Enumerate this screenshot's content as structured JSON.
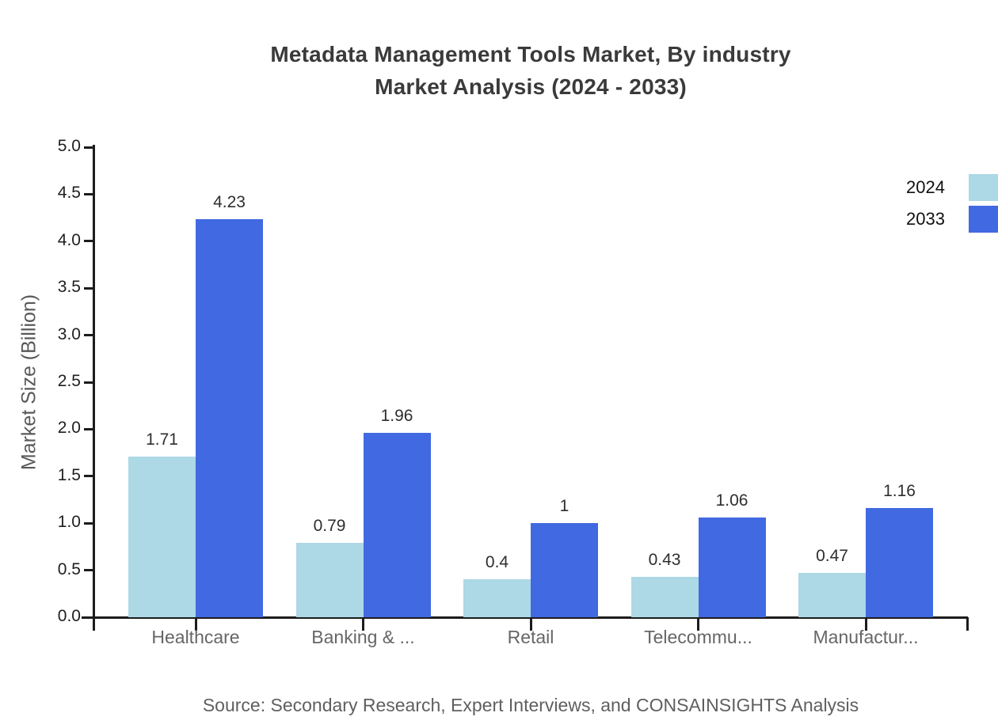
{
  "title": {
    "line1": "Metadata Management Tools Market, By industry",
    "line2": "Market Analysis (2024 - 2033)"
  },
  "source": {
    "text": "Source: Secondary Research, Expert Interviews, and CONSAINSIGHTS Analysis"
  },
  "chart_data": {
    "type": "bar",
    "title": "Metadata Management Tools Market, By industry Market Analysis (2024 - 2033)",
    "categories": [
      "Healthcare",
      "Banking & ...",
      "Retail",
      "Telecommu...",
      "Manufactur..."
    ],
    "series": [
      {
        "name": "2024",
        "color": "#ADD8E6",
        "values": [
          1.71,
          0.79,
          0.4,
          0.43,
          0.47
        ],
        "labels": [
          "1.71",
          "0.79",
          "0.4",
          "0.43",
          "0.47"
        ]
      },
      {
        "name": "2033",
        "color": "#4169E1",
        "values": [
          4.23,
          1.96,
          1,
          1.06,
          1.16
        ],
        "labels": [
          "4.23",
          "1.96",
          "1",
          "1.06",
          "1.16"
        ]
      }
    ],
    "xlabel": "",
    "ylabel": "Market Size (Billion)",
    "ylim": [
      0,
      5
    ],
    "ytick_step": 0.5,
    "yticks": [
      "0.0",
      "0.5",
      "1.0",
      "1.5",
      "2.0",
      "2.5",
      "3.0",
      "3.5",
      "4.0",
      "4.5",
      "5.0"
    ],
    "grid": false,
    "legend_position": "top-right",
    "value_labels_shown": true,
    "axis_color": "#1c1c1c"
  }
}
